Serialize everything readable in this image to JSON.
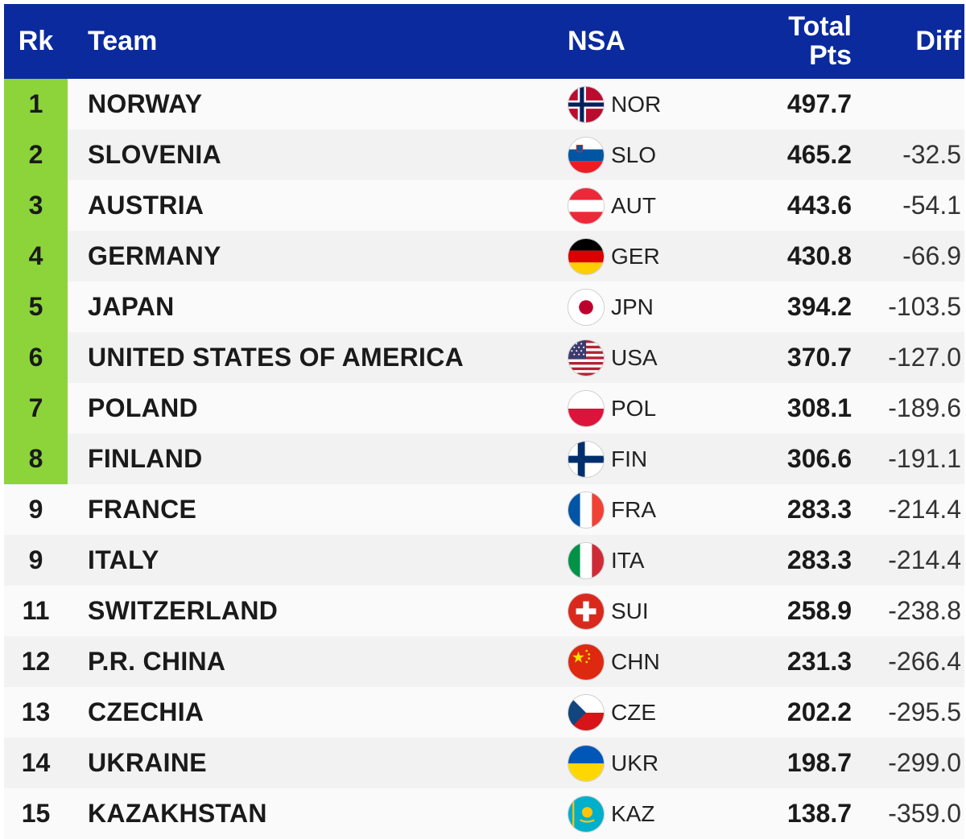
{
  "header": {
    "rk": "Rk",
    "team": "Team",
    "nsa": "NSA",
    "total_line1": "Total",
    "total_line2": "Pts",
    "diff": "Diff"
  },
  "colors": {
    "header_bg": "#0a2a9e",
    "qualified_rank_bg": "#8cd43a"
  },
  "rows": [
    {
      "rank": "1",
      "team": "NORWAY",
      "nsa": "NOR",
      "flag_icon": "norway-flag-icon",
      "total": "497.7",
      "diff": "",
      "qualified": true
    },
    {
      "rank": "2",
      "team": "SLOVENIA",
      "nsa": "SLO",
      "flag_icon": "slovenia-flag-icon",
      "total": "465.2",
      "diff": "-32.5",
      "qualified": true
    },
    {
      "rank": "3",
      "team": "AUSTRIA",
      "nsa": "AUT",
      "flag_icon": "austria-flag-icon",
      "total": "443.6",
      "diff": "-54.1",
      "qualified": true
    },
    {
      "rank": "4",
      "team": "GERMANY",
      "nsa": "GER",
      "flag_icon": "germany-flag-icon",
      "total": "430.8",
      "diff": "-66.9",
      "qualified": true
    },
    {
      "rank": "5",
      "team": "JAPAN",
      "nsa": "JPN",
      "flag_icon": "japan-flag-icon",
      "total": "394.2",
      "diff": "-103.5",
      "qualified": true
    },
    {
      "rank": "6",
      "team": "UNITED STATES OF AMERICA",
      "nsa": "USA",
      "flag_icon": "usa-flag-icon",
      "total": "370.7",
      "diff": "-127.0",
      "qualified": true
    },
    {
      "rank": "7",
      "team": "POLAND",
      "nsa": "POL",
      "flag_icon": "poland-flag-icon",
      "total": "308.1",
      "diff": "-189.6",
      "qualified": true
    },
    {
      "rank": "8",
      "team": "FINLAND",
      "nsa": "FIN",
      "flag_icon": "finland-flag-icon",
      "total": "306.6",
      "diff": "-191.1",
      "qualified": true
    },
    {
      "rank": "9",
      "team": "FRANCE",
      "nsa": "FRA",
      "flag_icon": "france-flag-icon",
      "total": "283.3",
      "diff": "-214.4",
      "qualified": false
    },
    {
      "rank": "9",
      "team": "ITALY",
      "nsa": "ITA",
      "flag_icon": "italy-flag-icon",
      "total": "283.3",
      "diff": "-214.4",
      "qualified": false
    },
    {
      "rank": "11",
      "team": "SWITZERLAND",
      "nsa": "SUI",
      "flag_icon": "switzerland-flag-icon",
      "total": "258.9",
      "diff": "-238.8",
      "qualified": false
    },
    {
      "rank": "12",
      "team": "P.R. CHINA",
      "nsa": "CHN",
      "flag_icon": "china-flag-icon",
      "total": "231.3",
      "diff": "-266.4",
      "qualified": false
    },
    {
      "rank": "13",
      "team": "CZECHIA",
      "nsa": "CZE",
      "flag_icon": "czechia-flag-icon",
      "total": "202.2",
      "diff": "-295.5",
      "qualified": false
    },
    {
      "rank": "14",
      "team": "UKRAINE",
      "nsa": "UKR",
      "flag_icon": "ukraine-flag-icon",
      "total": "198.7",
      "diff": "-299.0",
      "qualified": false
    },
    {
      "rank": "15",
      "team": "KAZAKHSTAN",
      "nsa": "KAZ",
      "flag_icon": "kazakhstan-flag-icon",
      "total": "138.7",
      "diff": "-359.0",
      "qualified": false
    }
  ]
}
